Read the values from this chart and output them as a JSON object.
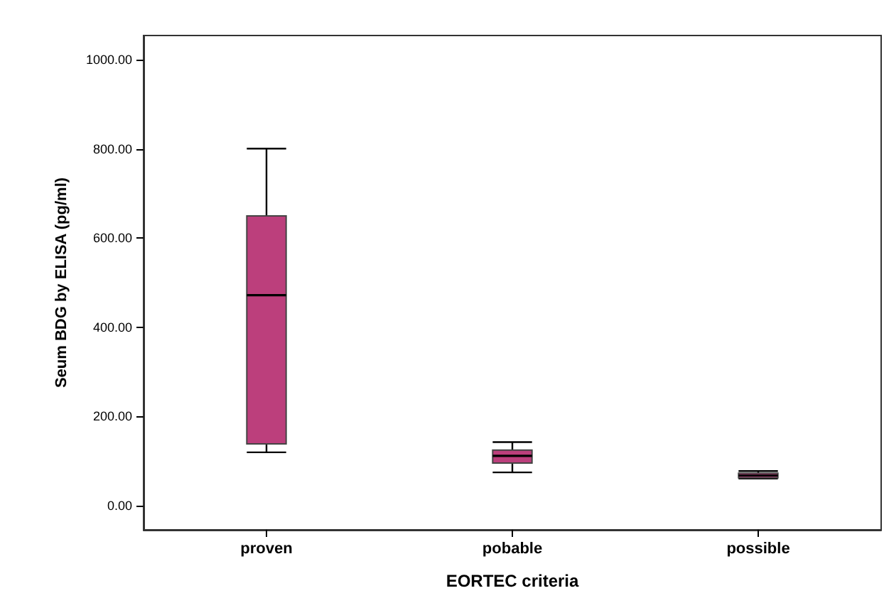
{
  "chart_data": {
    "type": "box",
    "xlabel": "EORTEC criteria",
    "ylabel": "Seum BDG by ELISA (pg/ml)",
    "categories": [
      "proven",
      "pobable",
      "possible"
    ],
    "boxes": [
      {
        "low": 119,
        "q1": 138,
        "median": 472,
        "q3": 650,
        "high": 801
      },
      {
        "low": 74,
        "q1": 95,
        "median": 111,
        "q3": 124,
        "high": 142
      },
      {
        "low": 60,
        "q1": 62,
        "median": 67,
        "q3": 72,
        "high": 77
      }
    ],
    "color": "#bc3f7c",
    "ylim": [
      -55,
      1055
    ],
    "yticks": [
      {
        "value": 0,
        "label": "0.00"
      },
      {
        "value": 200,
        "label": "200.00"
      },
      {
        "value": 400,
        "label": "400.00"
      },
      {
        "value": 600,
        "label": "600.00"
      },
      {
        "value": 800,
        "label": "800.00"
      },
      {
        "value": 1000,
        "label": "1000.00"
      }
    ],
    "grid": false
  }
}
